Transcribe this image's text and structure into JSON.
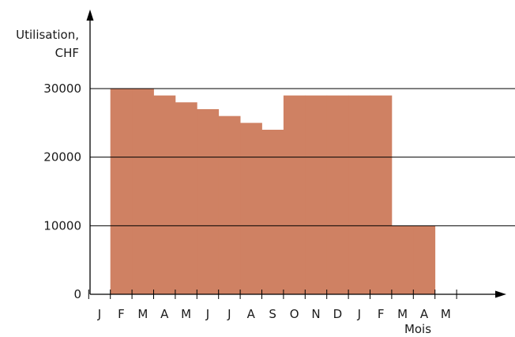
{
  "chart_data": {
    "type": "bar",
    "title": "",
    "ylabel_lines": [
      "Utilisation,",
      "CHF"
    ],
    "xlabel": "Mois",
    "ylim": [
      0,
      30000
    ],
    "yticks": [
      0,
      10000,
      20000,
      30000
    ],
    "ytick_labels": [
      "0",
      "10000",
      "20000",
      "30000"
    ],
    "grid": "horizontal",
    "legend": "none",
    "color": "#cf8163",
    "categories": [
      "J",
      "F",
      "M",
      "A",
      "M",
      "J",
      "J",
      "A",
      "S",
      "O",
      "N",
      "D",
      "J",
      "F",
      "M",
      "A",
      "M"
    ],
    "values": [
      0,
      30000,
      30000,
      29000,
      28000,
      27000,
      26000,
      25000,
      24000,
      29000,
      29000,
      29000,
      29000,
      29000,
      10000,
      10000,
      0
    ]
  }
}
